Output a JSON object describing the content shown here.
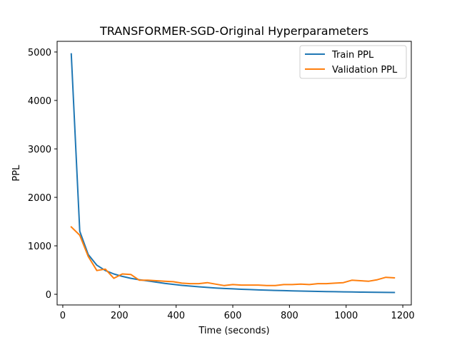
{
  "chart_data": {
    "type": "line",
    "title": "TRANSFORMER-SGD-Original Hyperparameters",
    "xlabel": "Time (seconds)",
    "ylabel": "PPL",
    "xlim": [
      -20,
      1230
    ],
    "ylim": [
      -220,
      5220
    ],
    "xticks": [
      0,
      200,
      400,
      600,
      800,
      1000,
      1200
    ],
    "yticks": [
      0,
      1000,
      2000,
      3000,
      4000,
      5000
    ],
    "legend_position": "top-right",
    "grid": false,
    "series": [
      {
        "name": "Train PPL",
        "color": "#1f77b4",
        "x": [
          30,
          60,
          90,
          120,
          150,
          180,
          210,
          240,
          270,
          300,
          330,
          360,
          390,
          420,
          450,
          480,
          510,
          540,
          570,
          600,
          630,
          660,
          690,
          720,
          750,
          780,
          810,
          840,
          870,
          900,
          930,
          960,
          990,
          1020,
          1050,
          1080,
          1110,
          1140,
          1170
        ],
        "y": [
          4960,
          1300,
          820,
          600,
          490,
          420,
          370,
          330,
          300,
          275,
          250,
          225,
          205,
          185,
          170,
          155,
          142,
          130,
          120,
          112,
          104,
          97,
          90,
          85,
          80,
          75,
          70,
          67,
          63,
          60,
          57,
          54,
          51,
          48,
          45,
          43,
          41,
          39,
          37
        ]
      },
      {
        "name": "Validation PPL",
        "color": "#ff7f0e",
        "x": [
          30,
          60,
          90,
          120,
          150,
          180,
          210,
          240,
          270,
          300,
          330,
          360,
          390,
          420,
          450,
          480,
          510,
          540,
          570,
          600,
          630,
          660,
          690,
          720,
          750,
          780,
          810,
          840,
          870,
          900,
          930,
          960,
          990,
          1020,
          1050,
          1080,
          1110,
          1140,
          1170
        ],
        "y": [
          1390,
          1220,
          780,
          490,
          520,
          330,
          420,
          410,
          290,
          290,
          280,
          270,
          260,
          230,
          220,
          220,
          240,
          210,
          180,
          200,
          190,
          190,
          190,
          180,
          180,
          200,
          200,
          210,
          200,
          220,
          220,
          230,
          240,
          290,
          280,
          270,
          300,
          350,
          340
        ]
      }
    ]
  }
}
